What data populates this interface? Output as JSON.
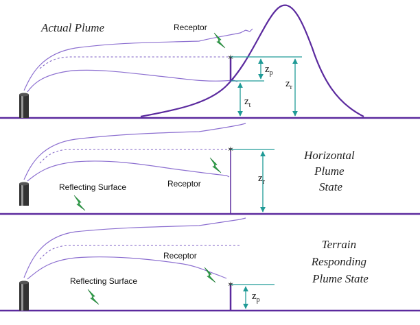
{
  "panels": [
    {
      "title": "Actual Plume",
      "receptor_label": "Receptor",
      "z_p": {
        "base": "z",
        "sub": "p"
      },
      "z_t": {
        "base": "z",
        "sub": "t"
      },
      "z_r": {
        "base": "z",
        "sub": "r"
      }
    },
    {
      "title_lines": [
        "Horizontal",
        "Plume",
        "State"
      ],
      "receptor_label": "Receptor",
      "surface_label": "Reflecting Surface",
      "z_r": {
        "base": "z",
        "sub": "r"
      }
    },
    {
      "title_lines": [
        "Terrain",
        "Responding",
        "Plume State"
      ],
      "receptor_label": "Receptor",
      "surface_label": "Reflecting Surface",
      "z_p": {
        "base": "z",
        "sub": "p"
      }
    }
  ],
  "colors": {
    "ground": "#5b2a9e",
    "plume": "#8c6fd0",
    "dimension": "#1f9a96",
    "lightning": "#2ea84a"
  }
}
